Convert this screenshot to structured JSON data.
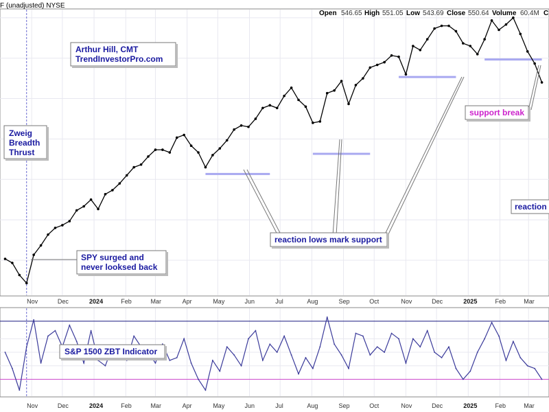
{
  "header": {
    "left": "F (unadjusted)  NYSE",
    "open_label": "Open",
    "open": "546.65",
    "high_label": "High",
    "high": "551.05",
    "low_label": "Low",
    "low": "543.69",
    "close_label": "Close",
    "close": "550.64",
    "volume_label": "Volume",
    "volume": "60.4M",
    "trail": "C"
  },
  "annotations": {
    "author_line1": "Arthur Hill, CMT",
    "author_line2": "TrendInvestorPro.com",
    "zweig_line1": "Zweig",
    "zweig_line2": "Breadth",
    "zweig_line3": "Thrust",
    "spy_line1": "SPY surged and",
    "spy_line2": "never looksed back",
    "reaction_lows": "reaction lows mark support",
    "support_break": "support break",
    "reaction_cut": "reaction",
    "indicator_label": "S&P 1500 ZBT Indicator"
  },
  "colors": {
    "price": "#000000",
    "support": "#a8a8f0",
    "indicator": "#3a3a9a",
    "upper_level": "#1a1a80",
    "lower_level": "#cc44cc",
    "grid": "#e8e8f0",
    "label_text": "#1a1aa0",
    "break_text": "#cc22cc"
  },
  "chart_data": [
    {
      "type": "line",
      "series_label": "",
      "x_ticks": [
        "Nov",
        "Dec",
        "2024",
        "Feb",
        "Mar",
        "Apr",
        "May",
        "Jun",
        "Jul",
        "Aug",
        "Sep",
        "Oct",
        "Nov",
        "Dec",
        "2025",
        "Feb",
        "Mar"
      ],
      "x": [
        "2023-10-06",
        "2023-10-13",
        "2023-10-20",
        "2023-10-27",
        "2023-11-03",
        "2023-11-10",
        "2023-11-17",
        "2023-11-24",
        "2023-12-01",
        "2023-12-08",
        "2023-12-15",
        "2023-12-22",
        "2023-12-29",
        "2024-01-05",
        "2024-01-12",
        "2024-01-19",
        "2024-01-26",
        "2024-02-02",
        "2024-02-09",
        "2024-02-16",
        "2024-02-23",
        "2024-03-01",
        "2024-03-08",
        "2024-03-15",
        "2024-03-22",
        "2024-03-29",
        "2024-04-05",
        "2024-04-12",
        "2024-04-19",
        "2024-04-26",
        "2024-05-03",
        "2024-05-10",
        "2024-05-17",
        "2024-05-24",
        "2024-05-31",
        "2024-06-07",
        "2024-06-14",
        "2024-06-21",
        "2024-06-28",
        "2024-07-05",
        "2024-07-12",
        "2024-07-19",
        "2024-07-26",
        "2024-08-02",
        "2024-08-09",
        "2024-08-16",
        "2024-08-23",
        "2024-08-30",
        "2024-09-06",
        "2024-09-13",
        "2024-09-20",
        "2024-09-27",
        "2024-10-04",
        "2024-10-11",
        "2024-10-18",
        "2024-10-25",
        "2024-11-01",
        "2024-11-08",
        "2024-11-15",
        "2024-11-22",
        "2024-11-29",
        "2024-12-06",
        "2024-12-13",
        "2024-12-20",
        "2024-12-27",
        "2025-01-03",
        "2025-01-10",
        "2025-01-17",
        "2025-01-24",
        "2025-01-31",
        "2025-02-07",
        "2025-02-14",
        "2025-02-21",
        "2025-02-28",
        "2025-03-07",
        "2025-03-14"
      ],
      "values": [
        431,
        428,
        419,
        413,
        434,
        441,
        449,
        454,
        456,
        459,
        467,
        470,
        475,
        468,
        479,
        482,
        487,
        493,
        499,
        501,
        507,
        512,
        512,
        510,
        521,
        523,
        515,
        510,
        499,
        508,
        513,
        519,
        527,
        530,
        529,
        535,
        543,
        545,
        543,
        552,
        558,
        549,
        544,
        532,
        533,
        554,
        556,
        563,
        546,
        560,
        565,
        573,
        575,
        577,
        582,
        581,
        568,
        589,
        586,
        594,
        602,
        604,
        604,
        600,
        591,
        589,
        583,
        594,
        608,
        601,
        605,
        610,
        598,
        585,
        576,
        562
      ],
      "support_levels": [
        {
          "from": "2024-04-19",
          "to": "2024-06-21",
          "value": 494
        },
        {
          "from": "2024-08-02",
          "to": "2024-09-27",
          "value": 509
        },
        {
          "from": "2024-10-25",
          "to": "2024-12-20",
          "value": 566
        },
        {
          "from": "2025-01-17",
          "to": "2025-03-14",
          "value": 579
        }
      ],
      "marker_date": "2023-10-27",
      "ylim": [
        405,
        614
      ]
    },
    {
      "type": "line",
      "title": "S&P 1500 ZBT Indicator",
      "x": [
        "2023-10-06",
        "2023-10-13",
        "2023-10-20",
        "2023-10-27",
        "2023-11-03",
        "2023-11-10",
        "2023-11-17",
        "2023-11-24",
        "2023-12-01",
        "2023-12-08",
        "2023-12-15",
        "2023-12-22",
        "2023-12-29",
        "2024-01-05",
        "2024-01-12",
        "2024-01-19",
        "2024-01-26",
        "2024-02-02",
        "2024-02-09",
        "2024-02-16",
        "2024-02-23",
        "2024-03-01",
        "2024-03-08",
        "2024-03-15",
        "2024-03-22",
        "2024-03-29",
        "2024-04-05",
        "2024-04-12",
        "2024-04-19",
        "2024-04-26",
        "2024-05-03",
        "2024-05-10",
        "2024-05-17",
        "2024-05-24",
        "2024-05-31",
        "2024-06-07",
        "2024-06-14",
        "2024-06-21",
        "2024-06-28",
        "2024-07-05",
        "2024-07-12",
        "2024-07-19",
        "2024-07-26",
        "2024-08-02",
        "2024-08-09",
        "2024-08-16",
        "2024-08-23",
        "2024-08-30",
        "2024-09-06",
        "2024-09-13",
        "2024-09-20",
        "2024-09-27",
        "2024-10-04",
        "2024-10-11",
        "2024-10-18",
        "2024-10-25",
        "2024-11-01",
        "2024-11-08",
        "2024-11-15",
        "2024-11-22",
        "2024-11-29",
        "2024-12-06",
        "2024-12-13",
        "2024-12-20",
        "2024-12-27",
        "2025-01-03",
        "2025-01-10",
        "2025-01-17",
        "2025-01-24",
        "2025-01-31",
        "2025-02-07",
        "2025-02-14",
        "2025-02-21",
        "2025-02-28",
        "2025-03-07",
        "2025-03-14"
      ],
      "values": [
        0.5,
        0.44,
        0.36,
        0.52,
        0.62,
        0.46,
        0.56,
        0.58,
        0.52,
        0.6,
        0.54,
        0.46,
        0.58,
        0.47,
        0.45,
        0.52,
        0.49,
        0.47,
        0.56,
        0.52,
        0.5,
        0.46,
        0.53,
        0.47,
        0.48,
        0.55,
        0.46,
        0.4,
        0.36,
        0.47,
        0.43,
        0.52,
        0.49,
        0.45,
        0.55,
        0.58,
        0.47,
        0.53,
        0.5,
        0.56,
        0.49,
        0.42,
        0.48,
        0.44,
        0.52,
        0.63,
        0.53,
        0.49,
        0.44,
        0.57,
        0.56,
        0.49,
        0.52,
        0.5,
        0.57,
        0.55,
        0.46,
        0.55,
        0.52,
        0.58,
        0.5,
        0.48,
        0.52,
        0.44,
        0.4,
        0.43,
        0.5,
        0.55,
        0.61,
        0.56,
        0.47,
        0.54,
        0.48,
        0.45,
        0.44,
        0.4
      ],
      "levels": {
        "upper": 0.615,
        "lower": 0.4
      },
      "ylim": [
        0.34,
        0.66
      ]
    }
  ]
}
